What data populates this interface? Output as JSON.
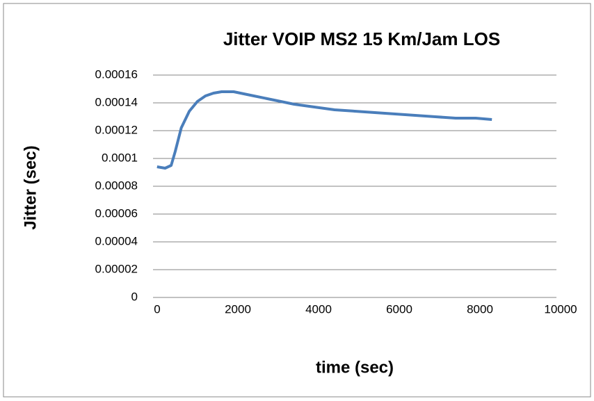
{
  "chart_data": {
    "type": "line",
    "title": "Jitter VOIP MS2 15 Km/Jam LOS",
    "x_label": "time (sec)",
    "y_label": "Jitter (sec)",
    "x": [
      100,
      300,
      450,
      550,
      700,
      900,
      1100,
      1300,
      1500,
      1700,
      2000,
      2500,
      3000,
      3500,
      4000,
      4500,
      5000,
      5500,
      6000,
      6500,
      7000,
      7500,
      8000,
      8400
    ],
    "values": [
      9.4e-05,
      9.3e-05,
      9.5e-05,
      0.000105,
      0.000122,
      0.000134,
      0.000141,
      0.000145,
      0.000147,
      0.000148,
      0.000148,
      0.000145,
      0.000142,
      0.000139,
      0.000137,
      0.000135,
      0.000134,
      0.000133,
      0.000132,
      0.000131,
      0.00013,
      0.000129,
      0.000129,
      0.000128
    ],
    "color": "#4a7ebb",
    "xlim": [
      0,
      10000
    ],
    "xticks": [
      0,
      2000,
      4000,
      6000,
      8000,
      10000
    ],
    "ylim": [
      0,
      0.00016
    ],
    "yticks": [
      0,
      2e-05,
      4e-05,
      6e-05,
      8e-05,
      0.0001,
      0.00012,
      0.00014,
      0.00016
    ],
    "grid": true
  }
}
